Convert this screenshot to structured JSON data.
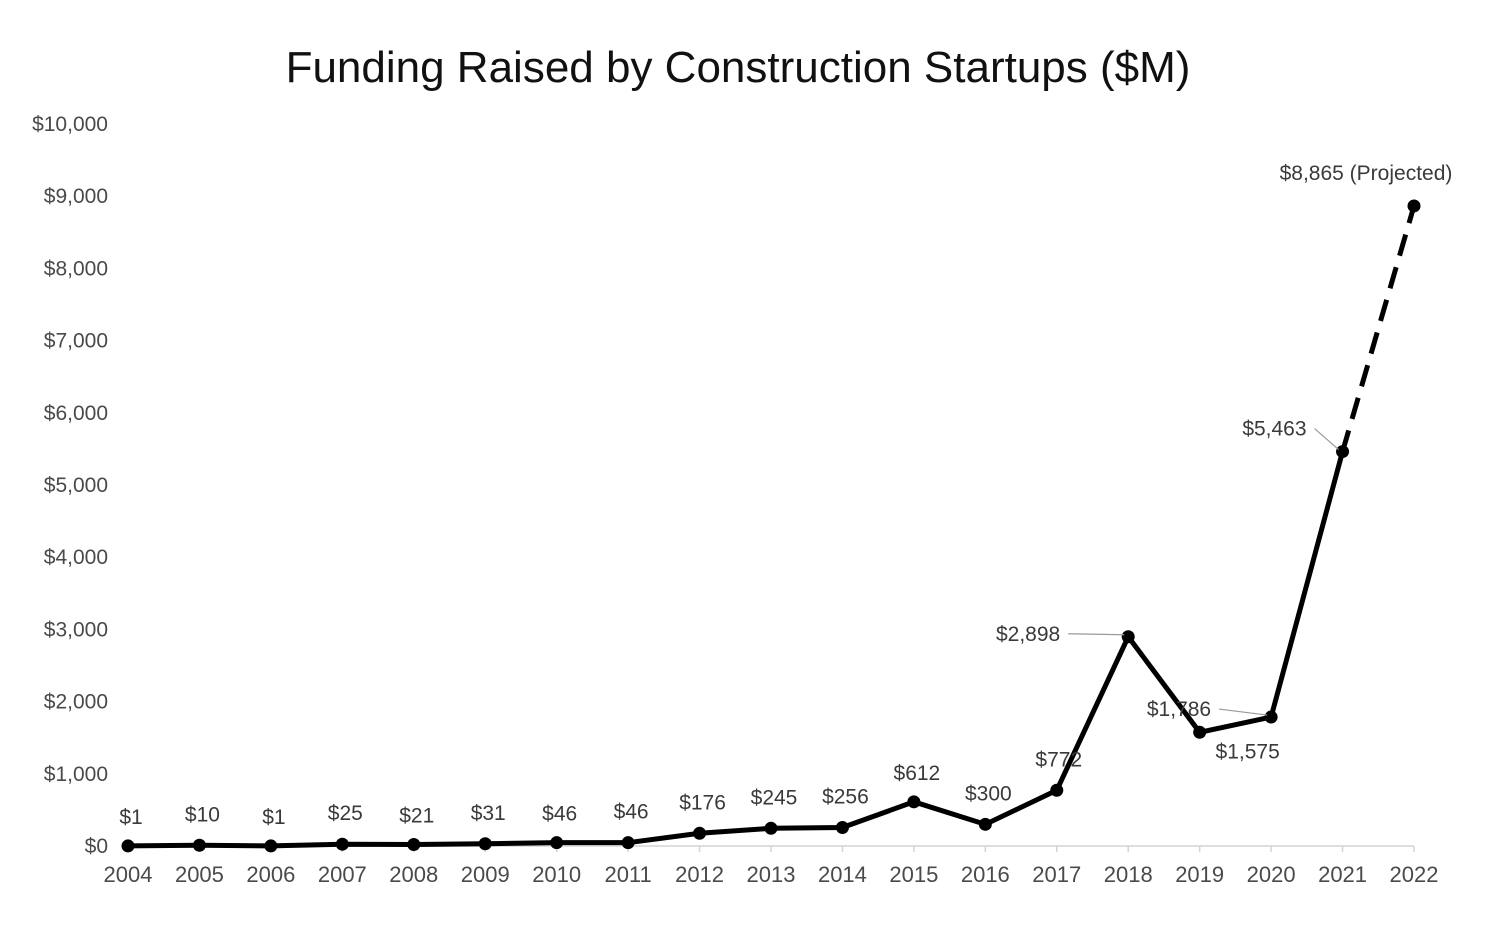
{
  "chart_data": {
    "type": "line",
    "title": "Funding Raised by Construction Startups ($M)",
    "xlabel": "",
    "ylabel": "",
    "ylim": [
      0,
      10000
    ],
    "y_ticks": [
      0,
      1000,
      2000,
      3000,
      4000,
      5000,
      6000,
      7000,
      8000,
      9000,
      10000
    ],
    "y_tick_labels": [
      "$0",
      "$1,000",
      "$2,000",
      "$3,000",
      "$4,000",
      "$5,000",
      "$6,000",
      "$7,000",
      "$8,000",
      "$9,000",
      "$10,000"
    ],
    "categories": [
      "2004",
      "2005",
      "2006",
      "2007",
      "2008",
      "2009",
      "2010",
      "2011",
      "2012",
      "2013",
      "2014",
      "2015",
      "2016",
      "2017",
      "2018",
      "2019",
      "2020",
      "2021",
      "2022"
    ],
    "values": [
      1,
      10,
      1,
      25,
      21,
      31,
      46,
      46,
      176,
      245,
      256,
      612,
      300,
      772,
      2898,
      1575,
      1786,
      5463,
      8865
    ],
    "data_labels": [
      "$1",
      "$10",
      "$1",
      "$25",
      "$21",
      "$31",
      "$46",
      "$46",
      "$176",
      "$245",
      "$256",
      "$612",
      "$300",
      "$772",
      "$2,898",
      "$1,575",
      "$1,786",
      "$5,463",
      "$8,865 (Projected)"
    ],
    "projected_from_index": 17,
    "line_color": "#000000",
    "grid": false
  }
}
